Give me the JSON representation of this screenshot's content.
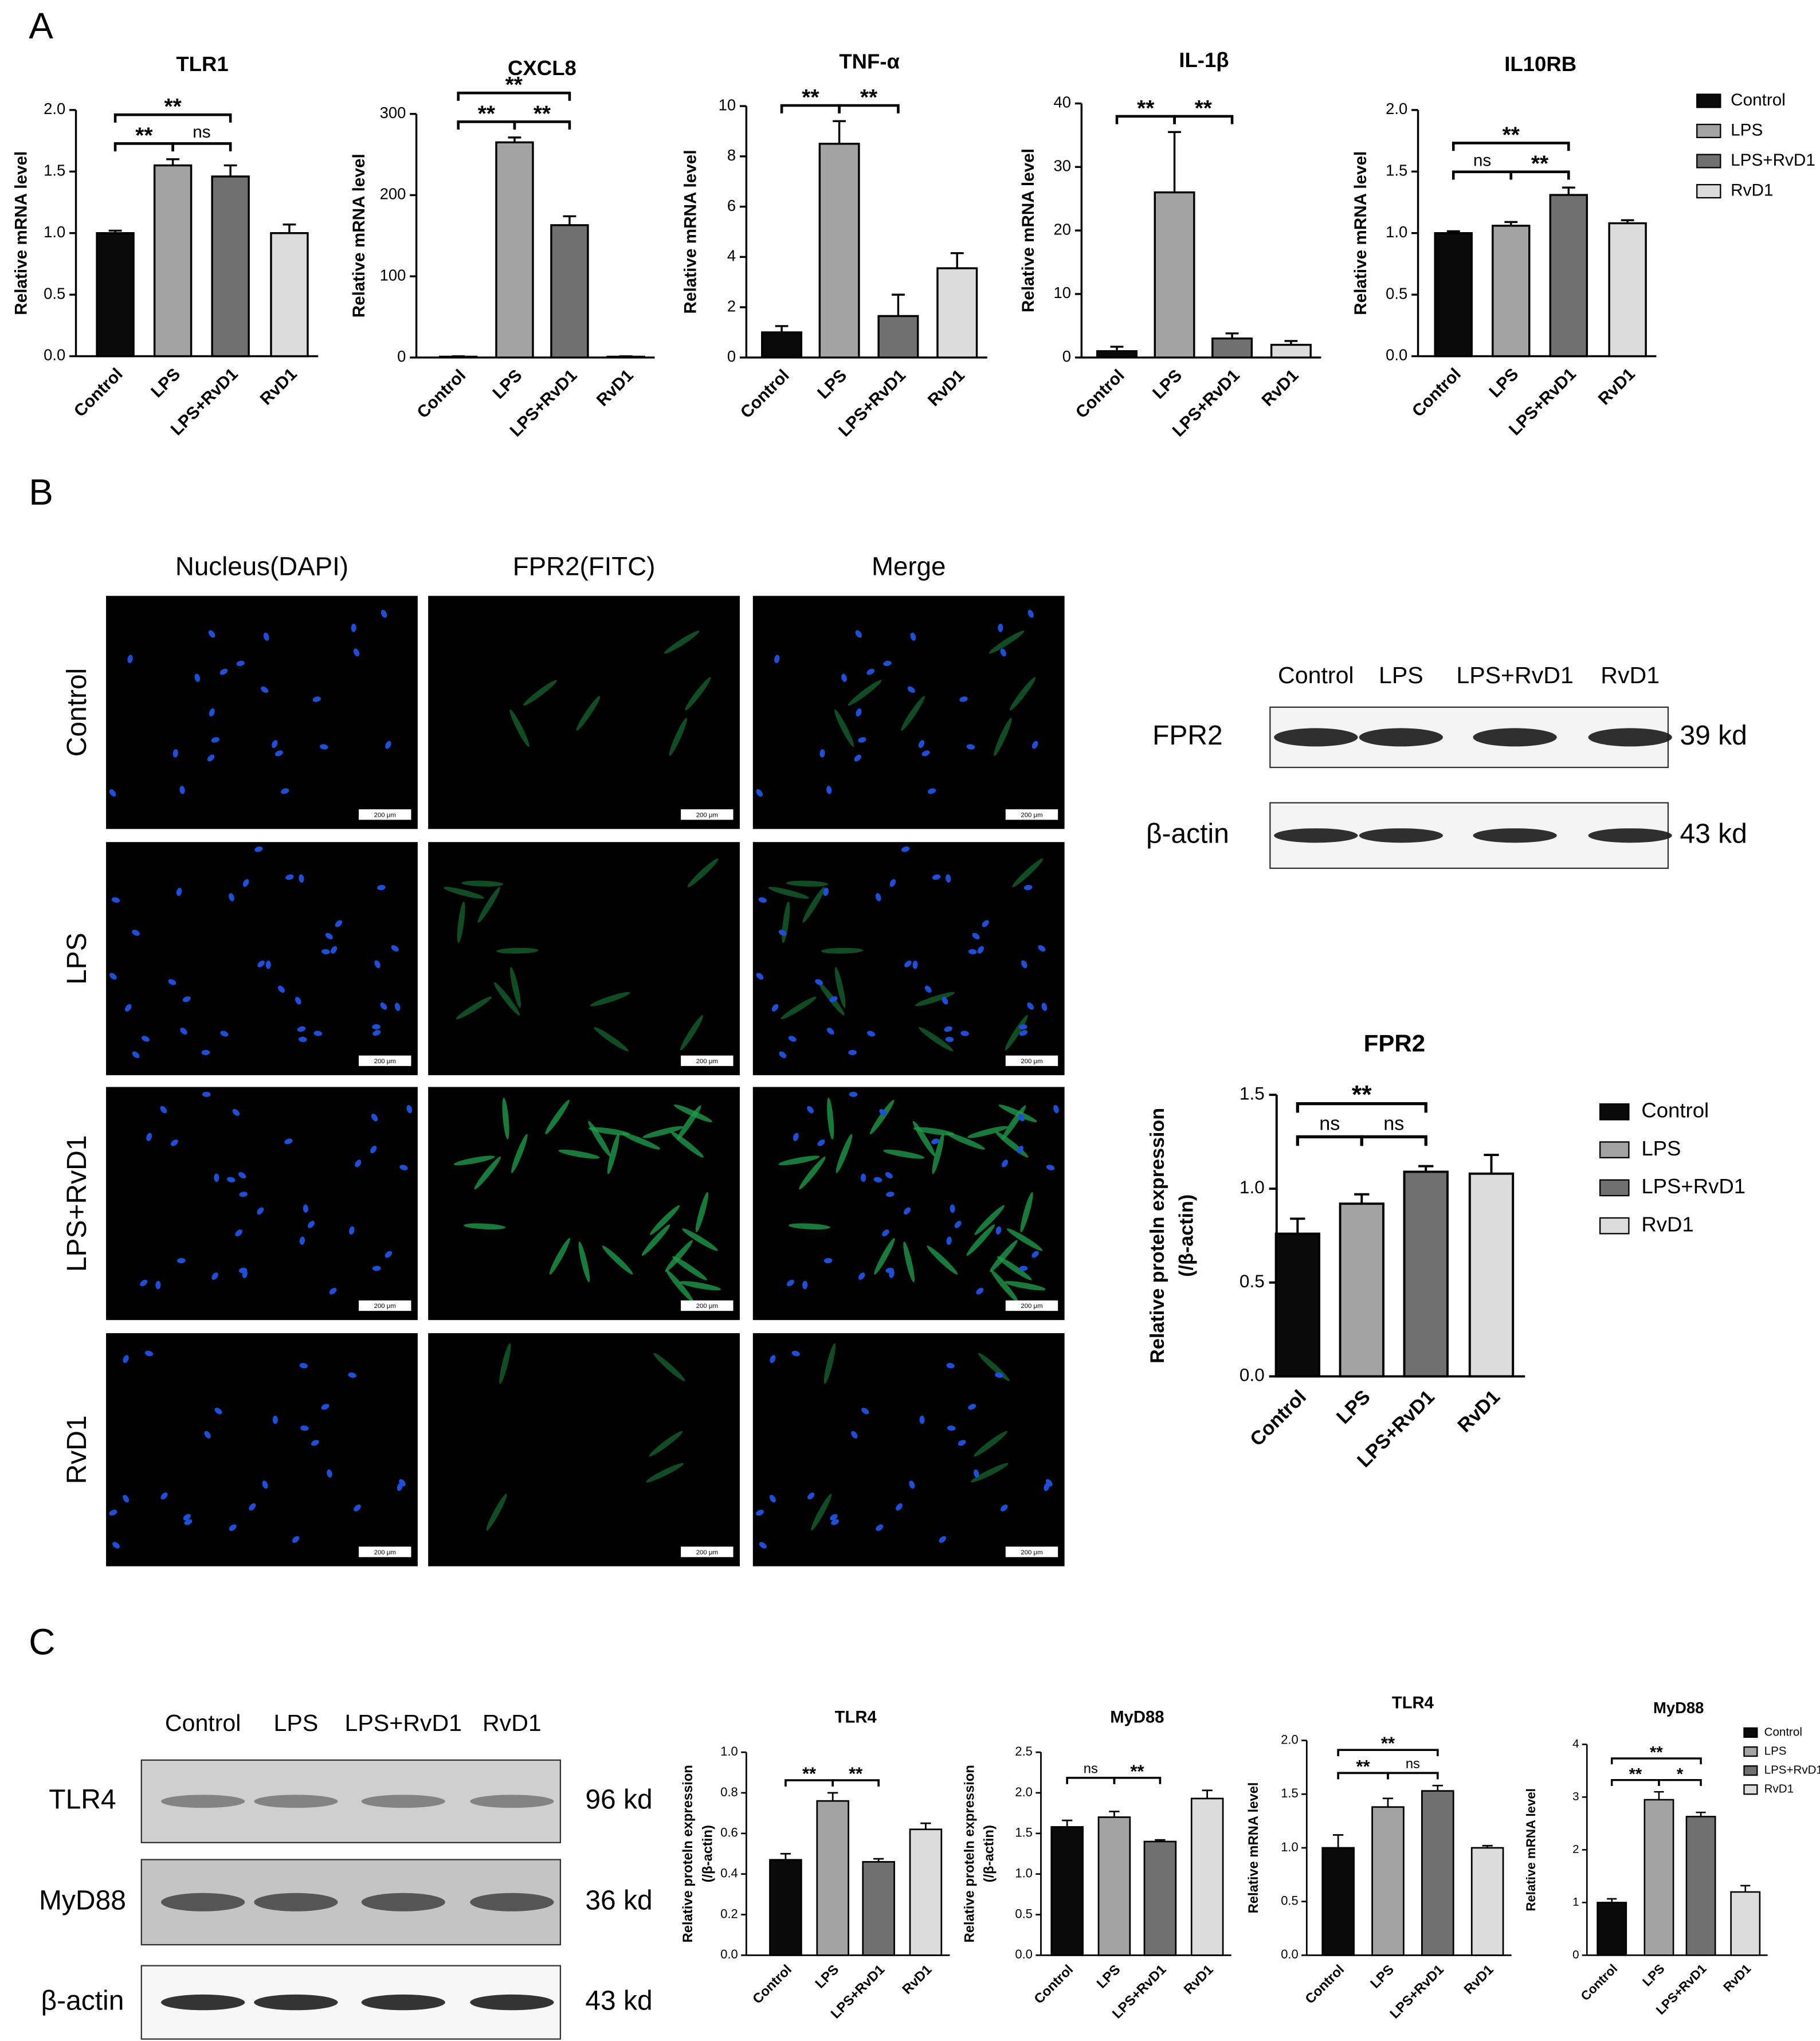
{
  "panel_labels": [
    "A",
    "B",
    "C"
  ],
  "chart_data": [
    {
      "type": "bar",
      "title": "TLR1",
      "y_label": "Relative mRNA level",
      "categories": [
        "Control",
        "LPS",
        "LPS+RvD1",
        "RvD1"
      ],
      "values": [
        1.0,
        1.55,
        1.46,
        1.0
      ],
      "errors": [
        0.02,
        0.05,
        0.09,
        0.07
      ],
      "colors": [
        "#0a0a0a",
        "#a3a3a3",
        "#707070",
        "#dcdcdc"
      ],
      "ylim": [
        0,
        2
      ],
      "yticks": [
        {
          "value": 0,
          "label": "0.0"
        },
        0.5,
        {
          "value": 1,
          "label": "1.0"
        },
        1.5,
        {
          "value": 2,
          "label": "2.0"
        }
      ],
      "annotations": [
        {
          "text": "**",
          "from": 0,
          "to": 1
        },
        {
          "text": "ns",
          "from": 1,
          "to": 2
        },
        {
          "text": "**",
          "from": 0,
          "to": 2
        }
      ]
    },
    {
      "type": "bar",
      "title": "CXCL8",
      "y_label": "Relative mRNA level",
      "categories": [
        "Control",
        "LPS",
        "LPS+RvD1",
        "RvD1"
      ],
      "values": [
        1,
        265,
        163,
        1
      ],
      "errors": [
        0.5,
        6,
        11,
        0.5
      ],
      "colors": [
        "#0a0a0a",
        "#a3a3a3",
        "#707070",
        "#dcdcdc"
      ],
      "ylim": [
        0,
        300
      ],
      "yticks": [
        0,
        100,
        200,
        300
      ],
      "annotations": [
        {
          "text": "**",
          "from": 0,
          "to": 1
        },
        {
          "text": "**",
          "from": 1,
          "to": 2
        },
        {
          "text": "**",
          "from": 0,
          "to": 2
        }
      ]
    },
    {
      "type": "bar",
      "title": "TNF-α",
      "y_label": "Relative mRNA level",
      "categories": [
        "Control",
        "LPS",
        "LPS+RvD1",
        "RvD1"
      ],
      "values": [
        1.0,
        8.5,
        1.65,
        3.55
      ],
      "errors": [
        0.25,
        0.9,
        0.85,
        0.6
      ],
      "colors": [
        "#0a0a0a",
        "#a3a3a3",
        "#707070",
        "#dcdcdc"
      ],
      "ylim": [
        0,
        10
      ],
      "yticks": [
        0,
        2,
        4,
        6,
        8,
        10
      ],
      "annotations": [
        {
          "text": "**",
          "from": 0,
          "to": 1
        },
        {
          "text": "**",
          "from": 1,
          "to": 2
        }
      ]
    },
    {
      "type": "bar",
      "title": "IL-1β",
      "y_label": "Relative mRNA level",
      "categories": [
        "Control",
        "LPS",
        "LPS+RvD1",
        "RvD1"
      ],
      "values": [
        1,
        26,
        3,
        2
      ],
      "errors": [
        0.7,
        9.5,
        0.8,
        0.6
      ],
      "colors": [
        "#0a0a0a",
        "#a3a3a3",
        "#707070",
        "#dcdcdc"
      ],
      "ylim": [
        0,
        40
      ],
      "yticks": [
        0,
        10,
        20,
        30,
        40
      ],
      "annotations": [
        {
          "text": "**",
          "from": 0,
          "to": 1
        },
        {
          "text": "**",
          "from": 1,
          "to": 2
        }
      ]
    },
    {
      "type": "bar",
      "title": "IL10RB",
      "y_label": "Relative mRNA level",
      "categories": [
        "Control",
        "LPS",
        "LPS+RvD1",
        "RvD1"
      ],
      "values": [
        1.0,
        1.06,
        1.31,
        1.08
      ],
      "errors": [
        0.015,
        0.03,
        0.06,
        0.025
      ],
      "colors": [
        "#0a0a0a",
        "#a3a3a3",
        "#707070",
        "#dcdcdc"
      ],
      "ylim": [
        0,
        2
      ],
      "yticks": [
        {
          "value": 0,
          "label": "0.0"
        },
        0.5,
        {
          "value": 1,
          "label": "1.0"
        },
        1.5,
        {
          "value": 2,
          "label": "2.0"
        }
      ],
      "annotations": [
        {
          "text": "ns",
          "from": 0,
          "to": 1
        },
        {
          "text": "**",
          "from": 1,
          "to": 2
        },
        {
          "text": "**",
          "from": 0,
          "to": 2
        }
      ],
      "legend": true
    },
    {
      "type": "bar",
      "title": "FPR2",
      "y_label": [
        "Relative proteln expression",
        "(/β-actin)"
      ],
      "categories": [
        "Control",
        "LPS",
        "LPS+RvD1",
        "RvD1"
      ],
      "values": [
        0.76,
        0.92,
        1.09,
        1.08
      ],
      "errors": [
        0.08,
        0.05,
        0.03,
        0.1
      ],
      "colors": [
        "#0a0a0a",
        "#a3a3a3",
        "#707070",
        "#dcdcdc"
      ],
      "ylim": [
        0,
        1.5
      ],
      "yticks": [
        {
          "value": 0,
          "label": "0.0"
        },
        0.5,
        {
          "value": 1,
          "label": "1.0"
        },
        1.5
      ],
      "annotations": [
        {
          "text": "ns",
          "from": 0,
          "to": 1
        },
        {
          "text": "ns",
          "from": 1,
          "to": 2
        },
        {
          "text": "**",
          "from": 0,
          "to": 2
        }
      ],
      "legend": true
    },
    {
      "type": "bar",
      "title": "TLR4",
      "y_label": [
        "Relative proteln expression",
        "(/β-actin)"
      ],
      "categories": [
        "Control",
        "LPS",
        "LPS+RvD1",
        "RvD1"
      ],
      "values": [
        0.47,
        0.76,
        0.46,
        0.62
      ],
      "errors": [
        0.03,
        0.04,
        0.015,
        0.03
      ],
      "colors": [
        "#0a0a0a",
        "#a3a3a3",
        "#707070",
        "#dcdcdc"
      ],
      "ylim": [
        0,
        1
      ],
      "yticks": [
        {
          "value": 0,
          "label": "0.0"
        },
        0.2,
        0.4,
        0.6,
        0.8,
        {
          "value": 1,
          "label": "1.0"
        }
      ],
      "annotations": [
        {
          "text": "**",
          "from": 0,
          "to": 1
        },
        {
          "text": "**",
          "from": 1,
          "to": 2
        }
      ]
    },
    {
      "type": "bar",
      "title": "MyD88",
      "y_label": [
        "Relative proteln expression",
        "(/β-actin)"
      ],
      "categories": [
        "Control",
        "LPS",
        "LPS+RvD1",
        "RvD1"
      ],
      "values": [
        1.58,
        1.7,
        1.4,
        1.93
      ],
      "errors": [
        0.08,
        0.07,
        0.02,
        0.1
      ],
      "colors": [
        "#0a0a0a",
        "#a3a3a3",
        "#707070",
        "#dcdcdc"
      ],
      "ylim": [
        0,
        2.5
      ],
      "yticks": [
        {
          "value": 0,
          "label": "0.0"
        },
        0.5,
        {
          "value": 1,
          "label": "1.0"
        },
        1.5,
        {
          "value": 2,
          "label": "2.0"
        },
        2.5
      ],
      "annotations": [
        {
          "text": "ns",
          "from": 0,
          "to": 1
        },
        {
          "text": "**",
          "from": 1,
          "to": 2
        }
      ]
    },
    {
      "type": "bar",
      "title": "TLR4",
      "y_label": "Relative mRNA level",
      "categories": [
        "Control",
        "LPS",
        "LPS+RvD1",
        "RvD1"
      ],
      "values": [
        1.0,
        1.38,
        1.53,
        1.0
      ],
      "errors": [
        0.12,
        0.08,
        0.05,
        0.02
      ],
      "colors": [
        "#0a0a0a",
        "#a3a3a3",
        "#707070",
        "#dcdcdc"
      ],
      "ylim": [
        0,
        2
      ],
      "yticks": [
        {
          "value": 0,
          "label": "0.0"
        },
        0.5,
        {
          "value": 1,
          "label": "1.0"
        },
        1.5,
        {
          "value": 2,
          "label": "2.0"
        }
      ],
      "annotations": [
        {
          "text": "**",
          "from": 0,
          "to": 1
        },
        {
          "text": "ns",
          "from": 1,
          "to": 2
        },
        {
          "text": "**",
          "from": 0,
          "to": 2
        }
      ]
    },
    {
      "type": "bar",
      "title": "MyD88",
      "y_label": "Relative mRNA level",
      "categories": [
        "Control",
        "LPS",
        "LPS+RvD1",
        "RvD1"
      ],
      "values": [
        1.0,
        2.95,
        2.63,
        1.2
      ],
      "errors": [
        0.07,
        0.15,
        0.08,
        0.12
      ],
      "colors": [
        "#0a0a0a",
        "#a3a3a3",
        "#707070",
        "#dcdcdc"
      ],
      "ylim": [
        0,
        4
      ],
      "yticks": [
        0,
        1,
        2,
        3,
        4
      ],
      "annotations": [
        {
          "text": "**",
          "from": 0,
          "to": 1
        },
        {
          "text": "*",
          "from": 1,
          "to": 2
        },
        {
          "text": "**",
          "from": 0,
          "to": 2
        }
      ],
      "legend": true
    }
  ],
  "microscopy": {
    "columns": [
      "Nucleus(DAPI)",
      "FPR2(FITC)",
      "Merge"
    ],
    "rows": [
      "Control",
      "LPS",
      "LPS+RvD1",
      "RvD1"
    ],
    "scale_bar": "200 μm"
  },
  "blot_b": {
    "lanes": [
      "Control",
      "LPS",
      "LPS+RvD1",
      "RvD1"
    ],
    "rows": [
      {
        "label": "FPR2",
        "size": "39 kd"
      },
      {
        "label": "β-actin",
        "size": "43 kd"
      }
    ]
  },
  "blot_c": {
    "lanes": [
      "Control",
      "LPS",
      "LPS+RvD1",
      "RvD1"
    ],
    "rows": [
      {
        "label": "TLR4",
        "size": "96 kd"
      },
      {
        "label": "MyD88",
        "size": "36 kd"
      },
      {
        "label": "β-actin",
        "size": "43 kd"
      }
    ]
  }
}
